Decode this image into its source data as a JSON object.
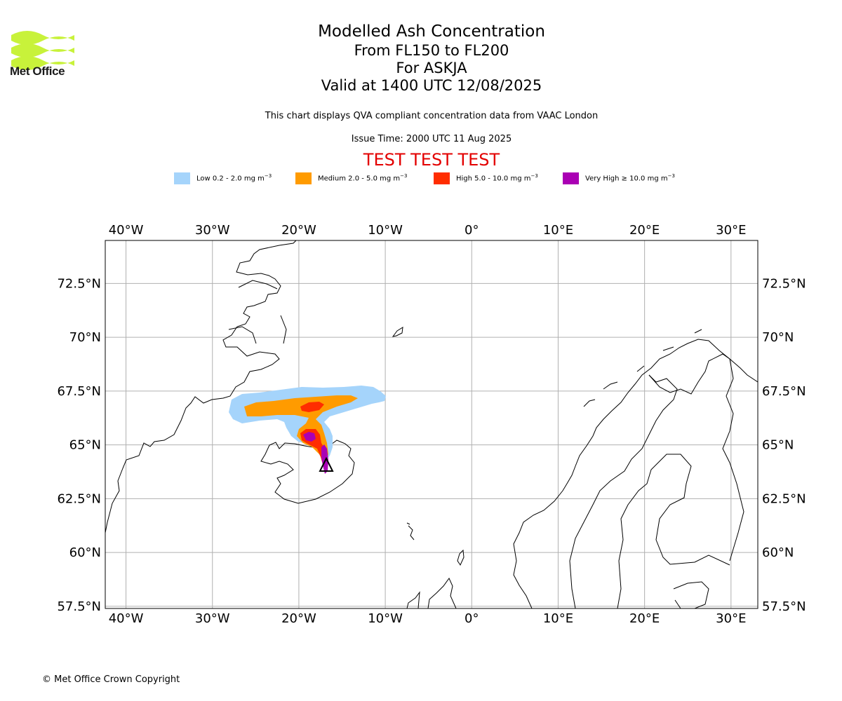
{
  "logo": {
    "name": "Met Office",
    "accent_color": "#c8f23a"
  },
  "title": {
    "main": "Modelled Ash Concentration",
    "levels": "From FL150 to FL200",
    "volcano": "For ASKJA",
    "valid": "Valid at 1400 UTC 12/08/2025"
  },
  "description": "This chart displays QVA compliant concentration data from VAAC London",
  "issue_time": "Issue Time: 2000 UTC 11 Aug 2025",
  "test_banner": "TEST TEST TEST",
  "legend": [
    {
      "label": "Low 0.2 - 2.0 mg m",
      "color": "#a5d4fb"
    },
    {
      "label": "Medium 2.0 - 5.0 mg m",
      "color": "#ff9b00"
    },
    {
      "label": "High 5.0 - 10.0 mg m",
      "color": "#ff2d00"
    },
    {
      "label": "Very High ≥ 10.0 mg m",
      "color": "#aa00b4"
    }
  ],
  "legend_unit_exponent": "−3",
  "map": {
    "projection": "plate-carree",
    "lon_range": [
      -42.4,
      33.1
    ],
    "lat_range": [
      57.4,
      74.5
    ],
    "lon_ticks": [
      "40°W",
      "30°W",
      "20°W",
      "10°W",
      "0°",
      "10°E",
      "20°E",
      "30°E"
    ],
    "lon_tick_values": [
      -40,
      -30,
      -20,
      -10,
      0,
      10,
      20,
      30
    ],
    "lat_ticks": [
      "57.5°N",
      "60°N",
      "62.5°N",
      "65°N",
      "67.5°N",
      "70°N",
      "72.5°N"
    ],
    "lat_tick_values": [
      57.5,
      60,
      62.5,
      65,
      67.5,
      70,
      72.5
    ],
    "gridlines": true,
    "volcano_marker": {
      "name": "Askja",
      "lon": -16.75,
      "lat": 65.05
    }
  },
  "copyright": "© Met Office Crown Copyright"
}
